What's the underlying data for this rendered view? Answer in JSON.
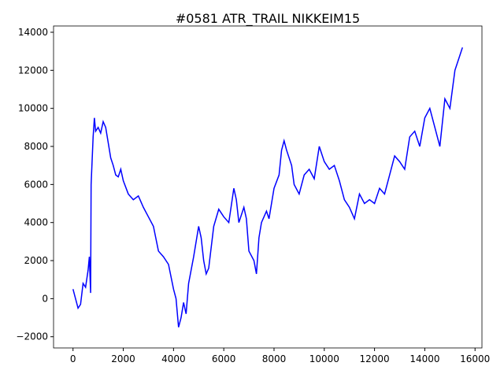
{
  "chart_data": {
    "type": "line",
    "title": "#0581 ATR_TRAIL NIKKEIM15",
    "x": [
      0,
      100,
      200,
      300,
      400,
      500,
      600,
      650,
      700,
      720,
      800,
      850,
      900,
      1000,
      1100,
      1200,
      1300,
      1400,
      1500,
      1600,
      1700,
      1800,
      1900,
      2000,
      2200,
      2400,
      2600,
      2800,
      3000,
      3200,
      3400,
      3600,
      3800,
      4000,
      4100,
      4200,
      4300,
      4400,
      4500,
      4600,
      4800,
      5000,
      5100,
      5200,
      5300,
      5400,
      5600,
      5800,
      6000,
      6200,
      6400,
      6500,
      6600,
      6800,
      6900,
      7000,
      7200,
      7300,
      7400,
      7500,
      7700,
      7800,
      8000,
      8200,
      8300,
      8400,
      8500,
      8700,
      8800,
      9000,
      9200,
      9400,
      9600,
      9800,
      10000,
      10200,
      10400,
      10600,
      10800,
      11000,
      11200,
      11400,
      11600,
      11800,
      12000,
      12200,
      12400,
      12600,
      12800,
      13000,
      13200,
      13400,
      13600,
      13800,
      14000,
      14200,
      14400,
      14600,
      14800,
      15000,
      15200,
      15400,
      15500
    ],
    "series": [
      {
        "color": "#0000ff",
        "values": [
          500,
          0,
          -500,
          -300,
          800,
          600,
          1500,
          2200,
          300,
          6000,
          8500,
          9500,
          8800,
          9000,
          8700,
          9300,
          9000,
          8200,
          7400,
          7000,
          6500,
          6400,
          6800,
          6200,
          5500,
          5200,
          5400,
          4800,
          4300,
          3800,
          2500,
          2200,
          1800,
          500,
          0,
          -1500,
          -1000,
          -200,
          -800,
          800,
          2200,
          3800,
          3200,
          2000,
          1300,
          1600,
          3800,
          4700,
          4300,
          4000,
          5800,
          5200,
          4000,
          4800,
          4200,
          2500,
          2000,
          1300,
          3200,
          4000,
          4600,
          4200,
          5800,
          6500,
          7800,
          8300,
          7800,
          7000,
          6000,
          5500,
          6500,
          6800,
          6300,
          8000,
          7200,
          6800,
          7000,
          6200,
          5200,
          4800,
          4200,
          5500,
          5000,
          5200,
          5000,
          5800,
          5500,
          6500,
          7500,
          7200,
          6800,
          8500,
          8800,
          8000,
          9500,
          10000,
          9000,
          8000,
          10500,
          10000,
          12000,
          12800,
          13200
        ]
      }
    ],
    "xlim": [
      -775,
      16275
    ],
    "ylim": [
      -2590,
      14330
    ],
    "xticks": [
      0,
      2000,
      4000,
      6000,
      8000,
      10000,
      12000,
      14000,
      16000
    ],
    "yticks": [
      {
        "value": -2000,
        "label": "−2000"
      },
      0,
      2000,
      4000,
      6000,
      8000,
      10000,
      12000,
      14000
    ]
  }
}
